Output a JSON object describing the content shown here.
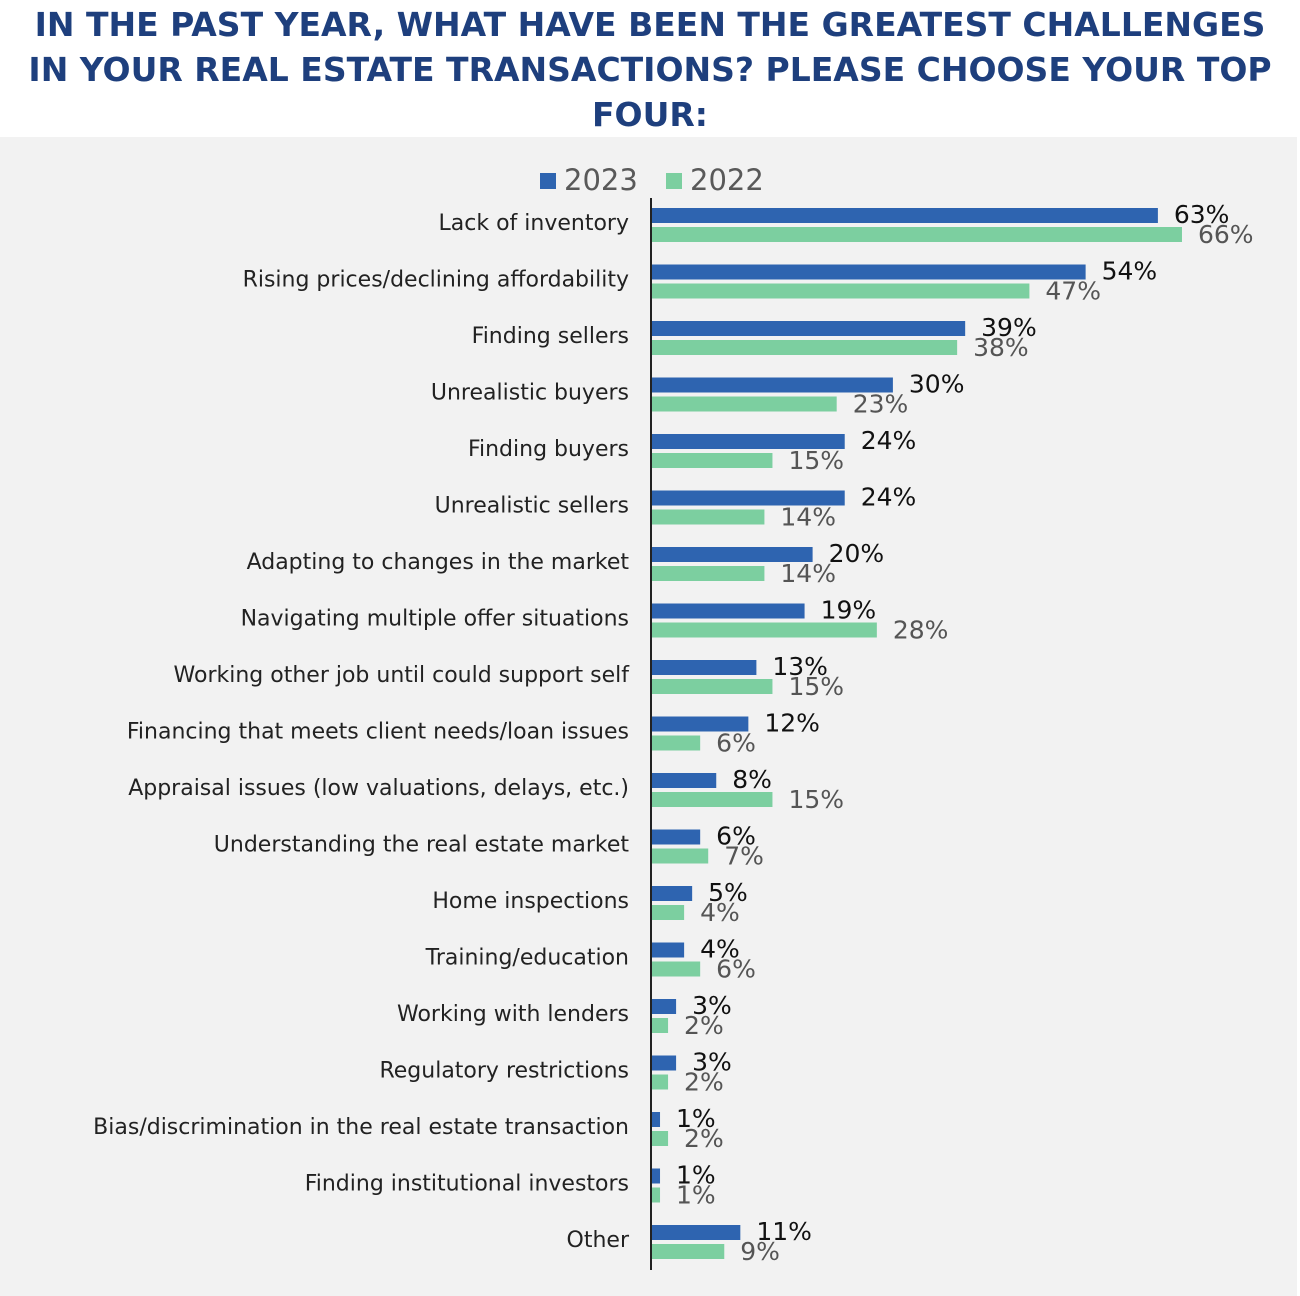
{
  "chart_data": {
    "type": "bar",
    "orientation": "horizontal",
    "title": "IN THE PAST YEAR, WHAT HAVE BEEN THE GREATEST CHALLENGES IN YOUR REAL ESTATE TRANSACTIONS? PLEASE CHOOSE YOUR TOP FOUR:",
    "categories": [
      "Lack of inventory",
      "Rising prices/declining affordability",
      "Finding sellers",
      "Unrealistic buyers",
      "Finding buyers",
      "Unrealistic sellers",
      "Adapting to changes in the market",
      "Navigating multiple offer situations",
      "Working other job until could support self",
      "Financing that meets client needs/loan issues",
      "Appraisal issues (low valuations, delays, etc.)",
      "Understanding the real estate market",
      "Home inspections",
      "Training/education",
      "Working with lenders",
      "Regulatory restrictions",
      "Bias/discrimination in the real estate transaction",
      "Finding institutional investors",
      "Other"
    ],
    "series": [
      {
        "name": "2023",
        "color": "#2e64b0",
        "label_color": "#111111",
        "values": [
          63,
          54,
          39,
          30,
          24,
          24,
          20,
          19,
          13,
          12,
          8,
          6,
          5,
          4,
          3,
          3,
          1,
          1,
          11
        ],
        "value_labels": [
          "63%",
          "54%",
          "39%",
          "30%",
          "24%",
          "24%",
          "20%",
          "19%",
          "13%",
          "12%",
          "8%",
          "6%",
          "5%",
          "4%",
          "3%",
          "3%",
          "1%",
          "1%",
          "11%"
        ]
      },
      {
        "name": "2022",
        "color": "#7ccfa0",
        "label_color": "#555555",
        "values": [
          66,
          47,
          38,
          23,
          15,
          14,
          14,
          28,
          15,
          6,
          15,
          7,
          4,
          6,
          2,
          2,
          2,
          1,
          9
        ],
        "value_labels": [
          "66%",
          "47%",
          "38%",
          "23%",
          "15%",
          "14%",
          "14%",
          "28%",
          "15%",
          "6%",
          "15%",
          "7%",
          "4%",
          "6%",
          "2%",
          "2%",
          "2%",
          "1%",
          "9%"
        ]
      }
    ],
    "legend": "top"
  }
}
